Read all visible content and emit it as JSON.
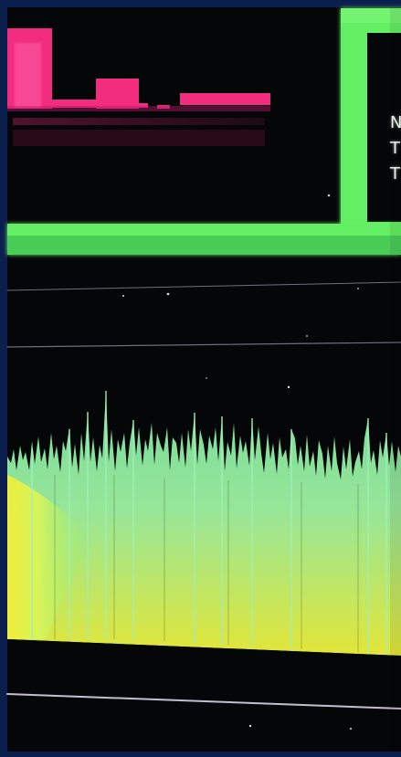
{
  "photo": {
    "background_color": "#0b1f4e",
    "screen_color": "#050608",
    "histogram_color": "#ff2f86",
    "monitor_border_color": "#63ef63",
    "waveform_top_color": "#7be6a3",
    "waveform_bottom_color": "#f1ef3a",
    "line_color": "#c8c2dc"
  },
  "side_text": {
    "line_1": "N",
    "line_2": "T",
    "line_3": "T"
  }
}
